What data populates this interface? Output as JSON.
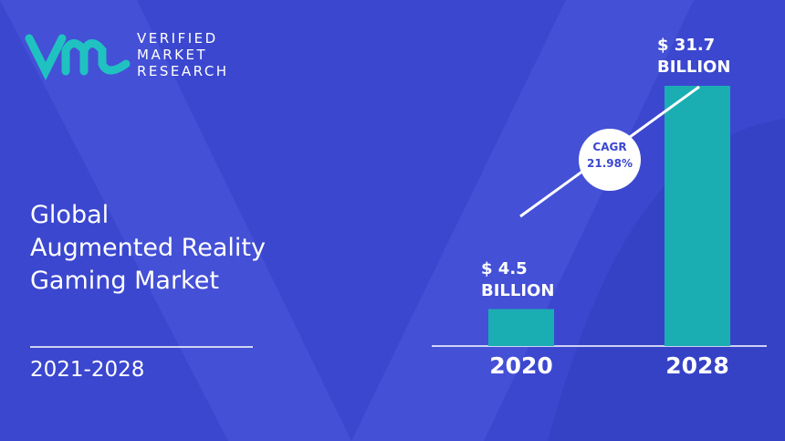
{
  "chart_data": {
    "type": "bar",
    "brand": [
      "VERIFIED",
      "MARKET",
      "RESEARCH"
    ],
    "title": "Global\nAugmented Reality\nGaming Market",
    "period": "2021-2028",
    "categories": [
      "2020",
      "2028"
    ],
    "values": [
      4.5,
      31.7
    ],
    "value_labels": [
      "$ 4.5\nBILLION",
      "$ 31.7\nBILLION"
    ],
    "color": "#1aaeb2",
    "cagr_label": "CAGR",
    "cagr_value": "21.98%"
  }
}
